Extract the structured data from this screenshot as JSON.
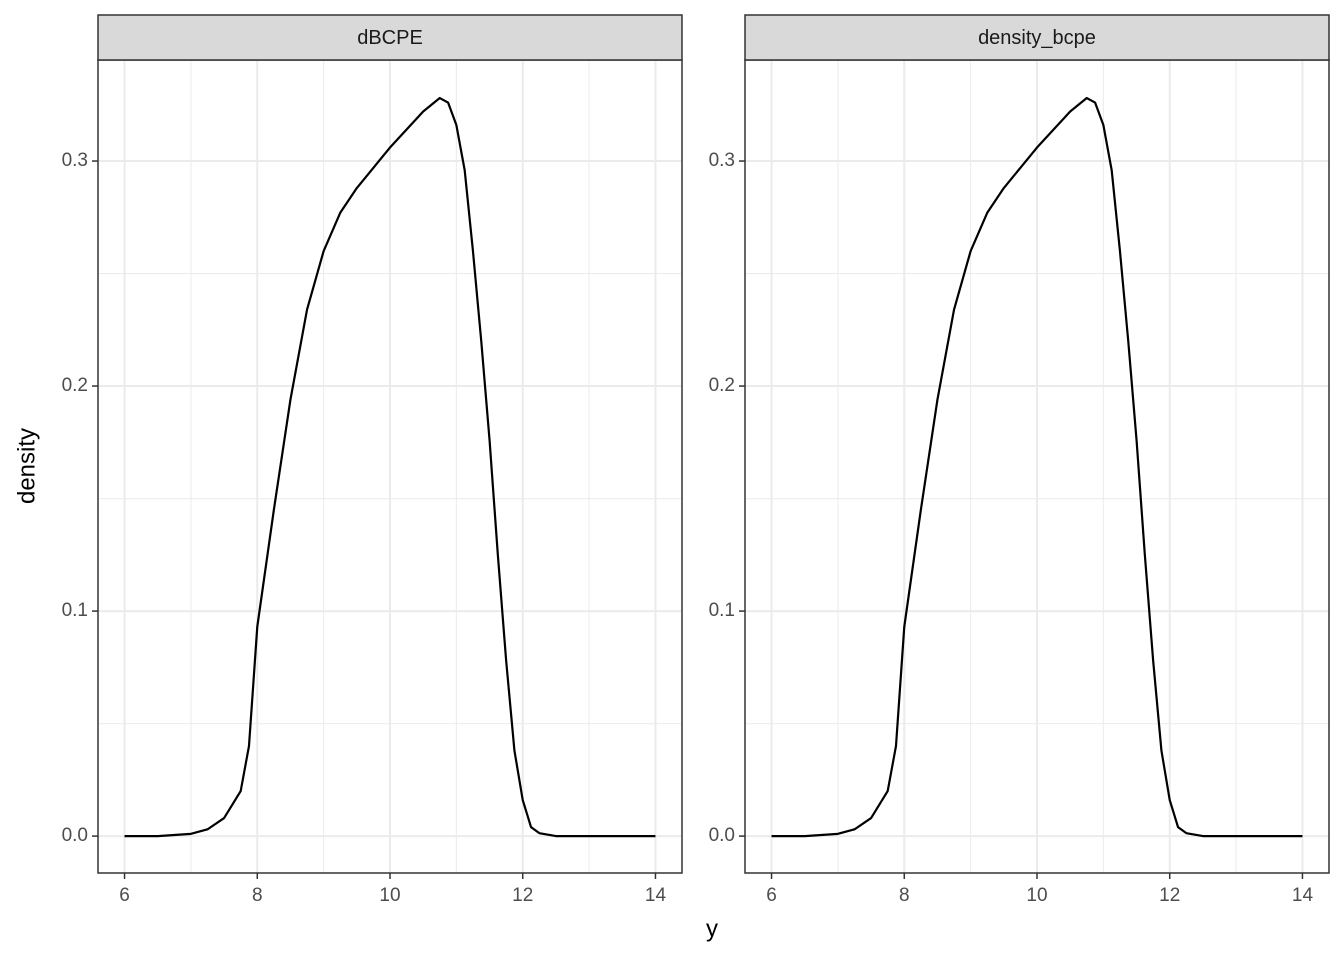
{
  "x_label": "y",
  "y_label": "density",
  "chart_data": [
    {
      "type": "line",
      "title": "dBCPE",
      "x": [
        6,
        6.5,
        7,
        7.25,
        7.5,
        7.75,
        7.875,
        8,
        8.25,
        8.5,
        8.75,
        9,
        9.25,
        9.5,
        9.75,
        10,
        10.25,
        10.5,
        10.75,
        10.875,
        11,
        11.125,
        11.25,
        11.375,
        11.5,
        11.625,
        11.75,
        11.875,
        12,
        12.125,
        12.25,
        12.5,
        13,
        14
      ],
      "values": [
        0,
        0,
        0.001,
        0.003,
        0.008,
        0.02,
        0.04,
        0.093,
        0.145,
        0.194,
        0.234,
        0.26,
        0.277,
        0.288,
        0.297,
        0.306,
        0.314,
        0.322,
        0.328,
        0.326,
        0.316,
        0.296,
        0.26,
        0.22,
        0.176,
        0.125,
        0.078,
        0.038,
        0.016,
        0.004,
        0.0013,
        0,
        0,
        0
      ],
      "color": "#000000",
      "xlim": [
        5.6,
        14.4
      ],
      "ylim": [
        -0.0164,
        0.3449
      ],
      "xticks": [
        6,
        8,
        10,
        12,
        14
      ],
      "yticks": [
        {
          "value": 0,
          "label": "0.0"
        },
        0.1,
        0.2,
        0.3
      ],
      "grid": true
    },
    {
      "type": "line",
      "title": "density_bcpe",
      "x": [
        6,
        6.5,
        7,
        7.25,
        7.5,
        7.75,
        7.875,
        8,
        8.25,
        8.5,
        8.75,
        9,
        9.25,
        9.5,
        9.75,
        10,
        10.25,
        10.5,
        10.75,
        10.875,
        11,
        11.125,
        11.25,
        11.375,
        11.5,
        11.625,
        11.75,
        11.875,
        12,
        12.125,
        12.25,
        12.5,
        13,
        14
      ],
      "values": [
        0,
        0,
        0.001,
        0.003,
        0.008,
        0.02,
        0.04,
        0.093,
        0.145,
        0.194,
        0.234,
        0.26,
        0.277,
        0.288,
        0.297,
        0.306,
        0.314,
        0.322,
        0.328,
        0.326,
        0.316,
        0.296,
        0.26,
        0.22,
        0.176,
        0.125,
        0.078,
        0.038,
        0.016,
        0.004,
        0.0013,
        0,
        0,
        0
      ],
      "color": "#000000",
      "xlim": [
        5.6,
        14.4
      ],
      "ylim": [
        -0.0164,
        0.3449
      ],
      "xticks": [
        6,
        8,
        10,
        12,
        14
      ],
      "yticks": [
        {
          "value": 0,
          "label": "0.0"
        },
        0.1,
        0.2,
        0.3
      ],
      "grid": true
    }
  ]
}
